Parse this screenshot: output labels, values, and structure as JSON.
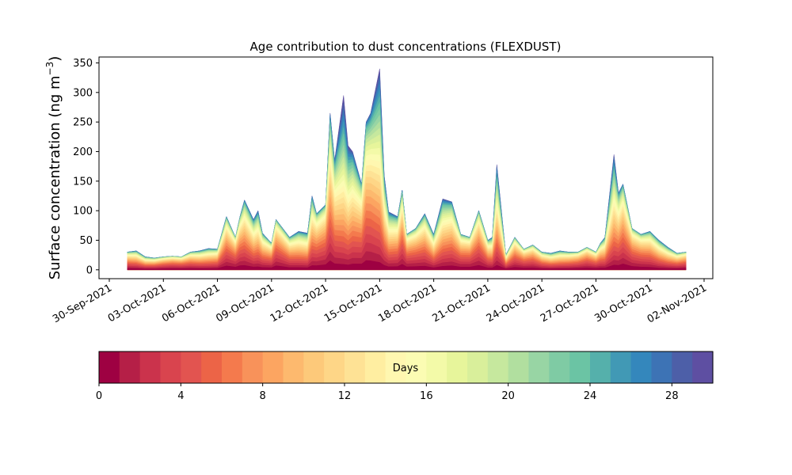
{
  "chart_data": {
    "type": "area",
    "title": "Age contribution to dust concentrations (FLEXDUST)",
    "ylabel_main": "Surface concentration (ng m",
    "ylabel_sup": "−3",
    "ylabel_end": ")",
    "xlabel": "",
    "ylim": [
      -15,
      360
    ],
    "yticks": [
      0,
      50,
      100,
      150,
      200,
      250,
      300,
      350
    ],
    "x_range": [
      "2021-09-30",
      "2021-11-02"
    ],
    "xticks": [
      "30-Sep-2021",
      "03-Oct-2021",
      "06-Oct-2021",
      "09-Oct-2021",
      "12-Oct-2021",
      "15-Oct-2021",
      "18-Oct-2021",
      "21-Oct-2021",
      "24-Oct-2021",
      "27-Oct-2021",
      "30-Oct-2021",
      "02-Nov-2021"
    ],
    "stacked_by": "age (days)",
    "n_age_bins": 30,
    "series_total": {
      "x": [
        "2021-10-01",
        "2021-10-01T12",
        "2021-10-02",
        "2021-10-02T12",
        "2021-10-03",
        "2021-10-03T12",
        "2021-10-04",
        "2021-10-04T12",
        "2021-10-05",
        "2021-10-05T12",
        "2021-10-06",
        "2021-10-06T12",
        "2021-10-07",
        "2021-10-07T06",
        "2021-10-07T12",
        "2021-10-08",
        "2021-10-08T06",
        "2021-10-08T12",
        "2021-10-09",
        "2021-10-09T06",
        "2021-10-09T12",
        "2021-10-10",
        "2021-10-10T12",
        "2021-10-11",
        "2021-10-11T06",
        "2021-10-11T12",
        "2021-10-12",
        "2021-10-12T06",
        "2021-10-12T12",
        "2021-10-13",
        "2021-10-13T06",
        "2021-10-13T12",
        "2021-10-14",
        "2021-10-14T06",
        "2021-10-14T12",
        "2021-10-15",
        "2021-10-15T06",
        "2021-10-15T12",
        "2021-10-16",
        "2021-10-16T06",
        "2021-10-16T12",
        "2021-10-17",
        "2021-10-17T12",
        "2021-10-18",
        "2021-10-18T12",
        "2021-10-19",
        "2021-10-19T12",
        "2021-10-20",
        "2021-10-20T12",
        "2021-10-21",
        "2021-10-21T06",
        "2021-10-21T12",
        "2021-10-22",
        "2021-10-22T12",
        "2021-10-23",
        "2021-10-23T12",
        "2021-10-24",
        "2021-10-24T12",
        "2021-10-25",
        "2021-10-25T12",
        "2021-10-26",
        "2021-10-26T12",
        "2021-10-27",
        "2021-10-27T06",
        "2021-10-27T12",
        "2021-10-28",
        "2021-10-28T06",
        "2021-10-28T12",
        "2021-10-29",
        "2021-10-29T12",
        "2021-10-30",
        "2021-10-30T12",
        "2021-10-31",
        "2021-10-31T12",
        "2021-11-01"
      ],
      "values": [
        30,
        32,
        22,
        20,
        22,
        23,
        22,
        30,
        32,
        36,
        35,
        90,
        55,
        90,
        118,
        85,
        100,
        62,
        45,
        85,
        75,
        55,
        65,
        62,
        125,
        95,
        110,
        265,
        185,
        295,
        210,
        200,
        145,
        250,
        265,
        340,
        160,
        98,
        90,
        135,
        60,
        70,
        95,
        60,
        120,
        115,
        60,
        55,
        100,
        50,
        55,
        178,
        25,
        55,
        35,
        42,
        30,
        28,
        32,
        30,
        30,
        38,
        30,
        45,
        55,
        195,
        130,
        145,
        70,
        60,
        65,
        50,
        38,
        28,
        30
      ]
    },
    "colorbar": {
      "label": "Days",
      "ticks": [
        0,
        4,
        8,
        12,
        16,
        20,
        24,
        28
      ],
      "vmin": 0,
      "vmax": 30,
      "colors": [
        "#9e0142",
        "#b51f47",
        "#cb334c",
        "#d9444e",
        "#e25450",
        "#ec6447",
        "#f47a4d",
        "#f8925a",
        "#fca561",
        "#fdb96e",
        "#fdc97a",
        "#fed687",
        "#fee295",
        "#ffeea1",
        "#fff7b0",
        "#fbfcb3",
        "#f3faa8",
        "#e7f59b",
        "#d9ef9b",
        "#c6e89e",
        "#b1df9f",
        "#98d5a4",
        "#7fcba4",
        "#6bc4a4",
        "#55b0ab",
        "#4199b5",
        "#3487bc",
        "#3d73b5",
        "#4d5fa8",
        "#5e4fa2"
      ]
    }
  }
}
